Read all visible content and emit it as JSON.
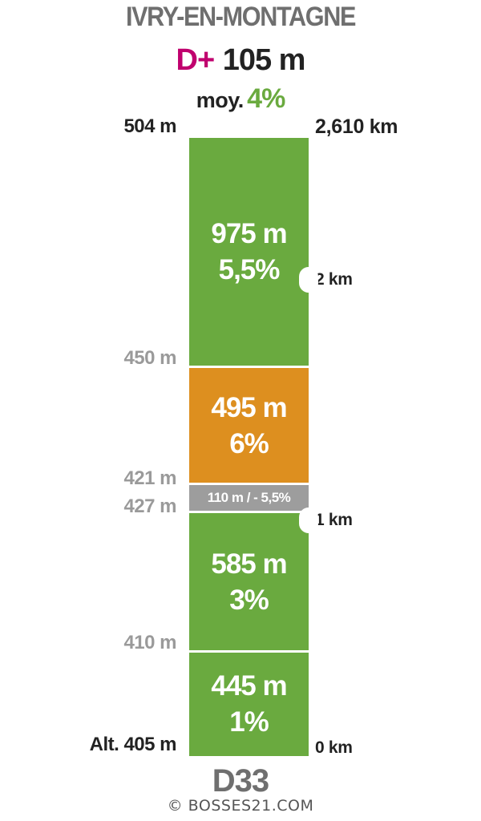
{
  "header": {
    "title": "IVRY-EN-MONTAGNE",
    "dplus_label": "D+",
    "dplus_value": "105 m",
    "avg_label": "moy.",
    "avg_value": "4%"
  },
  "footer": {
    "road": "D33",
    "credit": "© BOSSES21.COM"
  },
  "colors": {
    "climb_green": "#6aaa3f",
    "climb_orange": "#dd8f1f",
    "descent_grey": "#9d9d9d",
    "accent_magenta": "#c0006e",
    "title_grey": "#6f6f6f"
  },
  "chart_data": {
    "type": "bar",
    "orientation": "vertical-stacked-profile",
    "segments": [
      {
        "length_label": "445 m",
        "gradient_label": "1%",
        "length_m": 445,
        "gradient_pct": 1,
        "color": "#6aaa3f"
      },
      {
        "length_label": "585 m",
        "gradient_label": "3%",
        "length_m": 585,
        "gradient_pct": 3,
        "color": "#6aaa3f"
      },
      {
        "length_label": "110 m / - 5,5%",
        "gradient_label": "",
        "length_m": 110,
        "gradient_pct": -5.5,
        "color": "#9d9d9d"
      },
      {
        "length_label": "495 m",
        "gradient_label": "6%",
        "length_m": 495,
        "gradient_pct": 6,
        "color": "#dd8f1f"
      },
      {
        "length_label": "975 m",
        "gradient_label": "5,5%",
        "length_m": 975,
        "gradient_pct": 5.5,
        "color": "#6aaa3f"
      }
    ],
    "altitude_labels": [
      {
        "text": "Alt. 405 m",
        "distance_m": 0,
        "style": "strong"
      },
      {
        "text": "410 m",
        "distance_m": 445,
        "style": "grey"
      },
      {
        "text": "427 m",
        "distance_m": 1030,
        "style": "grey"
      },
      {
        "text": "421 m",
        "distance_m": 1140,
        "style": "grey"
      },
      {
        "text": "450 m",
        "distance_m": 1635,
        "style": "grey"
      },
      {
        "text": "504 m",
        "distance_m": 2610,
        "style": "strong"
      }
    ],
    "distance_labels": [
      {
        "text": "0 km",
        "distance_m": 0,
        "marker": false
      },
      {
        "text": "1 km",
        "distance_m": 1000,
        "marker": true
      },
      {
        "text": "2 km",
        "distance_m": 2000,
        "marker": true
      },
      {
        "text": "2,610 km",
        "distance_m": 2610,
        "marker": false
      }
    ],
    "total_distance_m": 2610
  }
}
